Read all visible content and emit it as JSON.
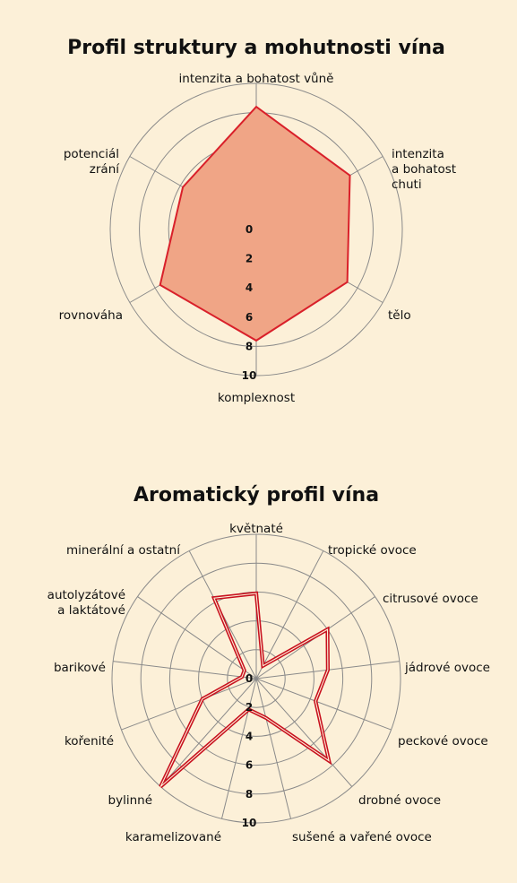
{
  "chart_data": [
    {
      "type": "radar",
      "title": "Profil struktury a mohutnosti vína",
      "axes": [
        "intenzita a bohatost vůně",
        "intenzita\na bohatost\nchuti",
        "tělo",
        "komplexnost",
        "rovnováha",
        "potenciál\nzrání"
      ],
      "ticks": [
        "0",
        "2",
        "4",
        "6",
        "8",
        "10"
      ],
      "range": [
        0,
        10
      ],
      "grid": true,
      "series": [
        {
          "values": [
            8.4,
            7.4,
            7.2,
            7.6,
            7.6,
            5.8
          ],
          "color": "#d9202a",
          "fill": "#f0a586"
        }
      ]
    },
    {
      "type": "radar",
      "title": "Aromatický profil vína",
      "axes": [
        "květnaté",
        "tropické ovoce",
        "citrusové ovoce",
        "jádrové ovoce",
        "peckové ovoce",
        "drobné ovoce",
        "sušené a vařené ovoce",
        "karamelizované",
        "bylinné",
        "kořenité",
        "barikové",
        "autolyzátové\na laktátové",
        "minerální a ostatní"
      ],
      "ticks": [
        "0",
        "2",
        "4",
        "6",
        "8",
        "10"
      ],
      "range": [
        0,
        10
      ],
      "grid": true,
      "series": [
        {
          "values": [
            5.9,
            1.0,
            6.0,
            5.0,
            4.4,
            7.6,
            2.8,
            2.2,
            10.0,
            4.0,
            1.0,
            1.0,
            6.3
          ],
          "color": "#c8101e",
          "fill": "none"
        }
      ]
    }
  ]
}
